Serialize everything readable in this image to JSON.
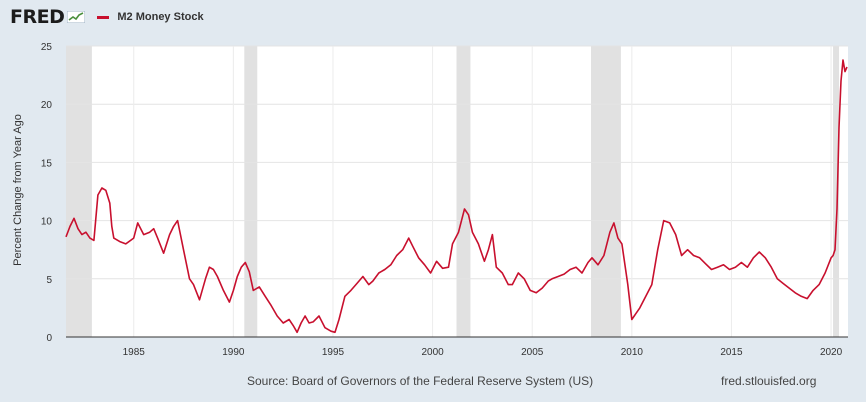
{
  "header": {
    "logo_text": "FRED",
    "logo_icon": "line-graph-icon",
    "series_color": "#c8102e",
    "series_label": "M2 Money Stock"
  },
  "footer": {
    "source": "Source: Board of Governors of the Federal Reserve System (US)",
    "url": "fred.stlouisfed.org"
  },
  "chart_data": {
    "type": "line",
    "title": "",
    "xlabel": "",
    "ylabel": "Percent Change from Year Ago",
    "xlim": [
      1981.6,
      2020.85
    ],
    "ylim": [
      0,
      25
    ],
    "grid": true,
    "xticks": [
      1985,
      1990,
      1995,
      2000,
      2005,
      2010,
      2015,
      2020
    ],
    "xtick_labels": [
      "1985",
      "1990",
      "1995",
      "2000",
      "2005",
      "2010",
      "2015",
      "2020"
    ],
    "yticks": [
      0,
      5,
      10,
      15,
      20,
      25
    ],
    "ytick_labels": [
      "0",
      "5",
      "10",
      "15",
      "20",
      "25"
    ],
    "recessions": [
      {
        "start": 1981.6,
        "end": 1982.9
      },
      {
        "start": 1990.55,
        "end": 1991.2
      },
      {
        "start": 2001.2,
        "end": 2001.9
      },
      {
        "start": 2007.95,
        "end": 2009.45
      },
      {
        "start": 2020.1,
        "end": 2020.4
      }
    ],
    "series": [
      {
        "name": "M2 Money Stock",
        "color": "#c8102e",
        "x": [
          1981.6,
          1981.8,
          1982.0,
          1982.2,
          1982.4,
          1982.6,
          1982.8,
          1983.0,
          1983.2,
          1983.4,
          1983.6,
          1983.8,
          1983.9,
          1984.0,
          1984.3,
          1984.6,
          1985.0,
          1985.2,
          1985.5,
          1985.8,
          1986.0,
          1986.2,
          1986.5,
          1986.8,
          1987.0,
          1987.2,
          1987.5,
          1987.8,
          1988.0,
          1988.3,
          1988.6,
          1988.8,
          1989.0,
          1989.2,
          1989.5,
          1989.8,
          1990.0,
          1990.2,
          1990.4,
          1990.6,
          1990.8,
          1991.0,
          1991.3,
          1991.6,
          1991.9,
          1992.2,
          1992.5,
          1992.8,
          1993.0,
          1993.2,
          1993.4,
          1993.6,
          1993.8,
          1994.0,
          1994.3,
          1994.6,
          1994.9,
          1995.1,
          1995.3,
          1995.6,
          1995.9,
          1996.2,
          1996.5,
          1996.8,
          1997.0,
          1997.3,
          1997.6,
          1997.9,
          1998.2,
          1998.5,
          1998.8,
          1999.0,
          1999.3,
          1999.6,
          1999.9,
          2000.2,
          2000.5,
          2000.8,
          2001.0,
          2001.3,
          2001.6,
          2001.8,
          2002.0,
          2002.3,
          2002.6,
          2002.8,
          2003.0,
          2003.2,
          2003.5,
          2003.8,
          2004.0,
          2004.3,
          2004.6,
          2004.9,
          2005.2,
          2005.5,
          2005.8,
          2006.0,
          2006.3,
          2006.6,
          2006.9,
          2007.2,
          2007.5,
          2007.8,
          2008.0,
          2008.3,
          2008.6,
          2008.9,
          2009.1,
          2009.3,
          2009.5,
          2009.8,
          2010.0,
          2010.2,
          2010.4,
          2010.7,
          2011.0,
          2011.3,
          2011.6,
          2011.9,
          2012.2,
          2012.5,
          2012.8,
          2013.1,
          2013.4,
          2013.7,
          2014.0,
          2014.3,
          2014.6,
          2014.9,
          2015.2,
          2015.5,
          2015.8,
          2016.1,
          2016.4,
          2016.7,
          2017.0,
          2017.3,
          2017.6,
          2017.9,
          2018.2,
          2018.5,
          2018.8,
          2019.1,
          2019.4,
          2019.7,
          2020.0,
          2020.1,
          2020.2,
          2020.3,
          2020.4,
          2020.5,
          2020.6,
          2020.7,
          2020.8
        ],
        "y": [
          8.6,
          9.5,
          10.2,
          9.3,
          8.8,
          9.0,
          8.5,
          8.3,
          12.2,
          12.8,
          12.6,
          11.5,
          9.5,
          8.5,
          8.2,
          8.0,
          8.5,
          9.8,
          8.8,
          9.0,
          9.3,
          8.5,
          7.2,
          8.8,
          9.5,
          10.0,
          7.5,
          5.0,
          4.5,
          3.2,
          5.0,
          6.0,
          5.8,
          5.2,
          4.0,
          3.0,
          4.0,
          5.2,
          6.0,
          6.4,
          5.6,
          4.0,
          4.3,
          3.5,
          2.7,
          1.8,
          1.2,
          1.5,
          1.0,
          0.4,
          1.2,
          1.8,
          1.2,
          1.3,
          1.8,
          0.8,
          0.5,
          0.4,
          1.5,
          3.5,
          4.0,
          4.6,
          5.2,
          4.5,
          4.8,
          5.5,
          5.8,
          6.2,
          7.0,
          7.5,
          8.5,
          7.8,
          6.8,
          6.2,
          5.5,
          6.5,
          5.9,
          6.0,
          8.0,
          9.0,
          11.0,
          10.5,
          9.0,
          8.0,
          6.5,
          7.5,
          8.8,
          6.0,
          5.5,
          4.5,
          4.5,
          5.5,
          5.0,
          4.0,
          3.8,
          4.2,
          4.8,
          5.0,
          5.2,
          5.4,
          5.8,
          6.0,
          5.5,
          6.4,
          6.8,
          6.2,
          7.0,
          9.0,
          9.8,
          8.5,
          8.0,
          4.5,
          1.5,
          2.0,
          2.5,
          3.5,
          4.5,
          7.5,
          10.0,
          9.8,
          8.8,
          7.0,
          7.5,
          7.0,
          6.8,
          6.3,
          5.8,
          6.0,
          6.2,
          5.8,
          6.0,
          6.4,
          6.0,
          6.8,
          7.3,
          6.8,
          6.0,
          5.0,
          4.6,
          4.2,
          3.8,
          3.5,
          3.3,
          4.0,
          4.5,
          5.5,
          6.8,
          7.0,
          7.5,
          11.0,
          18.0,
          22.0,
          23.8,
          22.8,
          23.2
        ]
      }
    ]
  }
}
